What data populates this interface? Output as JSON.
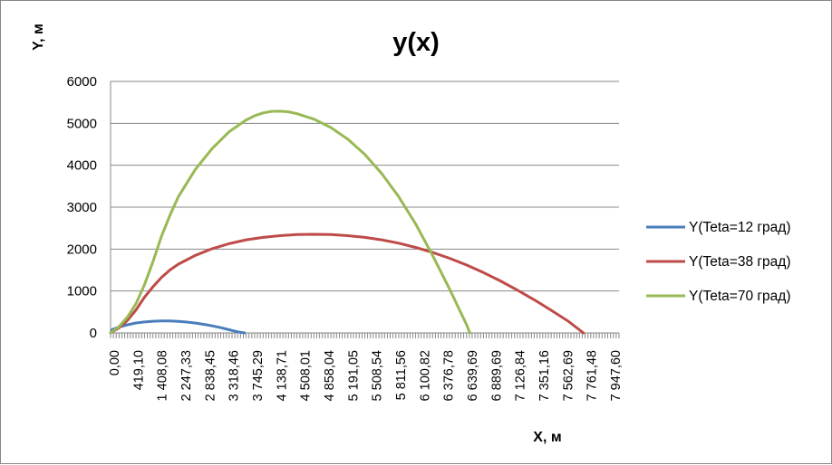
{
  "chart_data": {
    "type": "line",
    "title": "y(x)",
    "xlabel": "X, м",
    "ylabel": "Y, м",
    "ylim": [
      0,
      6000
    ],
    "yticks": [
      "0",
      "1000",
      "2000",
      "3000",
      "4000",
      "5000",
      "6000"
    ],
    "grid": "horizontal",
    "legend_position": "right",
    "x_tick_labels": [
      "0,00",
      "419,10",
      "1 408,08",
      "2 247,33",
      "2 838,45",
      "3 318,46",
      "3 745,29",
      "4 138,71",
      "4 508,01",
      "4 858,04",
      "5 191,05",
      "5 508,54",
      "5 811,56",
      "6 100,82",
      "6 376,78",
      "6 639,69",
      "6 889,69",
      "7 126,84",
      "7 351,16",
      "7 562,69",
      "7 761,48",
      "7 947,60"
    ],
    "series": [
      {
        "name": "Y(Teta=12 град)",
        "color": "#4a7ebb",
        "points": [
          [
            0,
            0
          ],
          [
            0.1,
            80
          ],
          [
            0.5,
            140
          ],
          [
            1,
            195
          ],
          [
            1.5,
            238
          ],
          [
            2,
            262
          ],
          [
            2.5,
            278
          ],
          [
            3,
            285
          ],
          [
            3.5,
            284
          ],
          [
            4,
            275
          ],
          [
            4.5,
            260
          ],
          [
            5,
            235
          ],
          [
            5.5,
            205
          ],
          [
            6,
            168
          ],
          [
            6.5,
            125
          ],
          [
            7,
            75
          ],
          [
            7.5,
            25
          ],
          [
            7.9,
            0
          ]
        ]
      },
      {
        "name": "Y(Teta=38 град)",
        "color": "#be4b48",
        "points": [
          [
            0,
            0
          ],
          [
            0.5,
            120
          ],
          [
            1,
            300
          ],
          [
            1.5,
            550
          ],
          [
            2,
            850
          ],
          [
            2.5,
            1100
          ],
          [
            3,
            1320
          ],
          [
            3.5,
            1500
          ],
          [
            4,
            1640
          ],
          [
            5,
            1850
          ],
          [
            6,
            2010
          ],
          [
            7,
            2130
          ],
          [
            8,
            2220
          ],
          [
            9,
            2280
          ],
          [
            10,
            2320
          ],
          [
            11,
            2345
          ],
          [
            12,
            2352
          ],
          [
            13,
            2345
          ],
          [
            14,
            2320
          ],
          [
            15,
            2280
          ],
          [
            16,
            2220
          ],
          [
            17,
            2140
          ],
          [
            18,
            2040
          ],
          [
            19,
            1920
          ],
          [
            20,
            1780
          ],
          [
            21,
            1620
          ],
          [
            22,
            1440
          ],
          [
            23,
            1240
          ],
          [
            24,
            1020
          ],
          [
            25,
            790
          ],
          [
            26,
            540
          ],
          [
            27,
            280
          ],
          [
            27.9,
            0
          ]
        ]
      },
      {
        "name": "Y(Teta=70 град)",
        "color": "#98b954",
        "points": [
          [
            0,
            0
          ],
          [
            0.5,
            150
          ],
          [
            1,
            380
          ],
          [
            1.5,
            700
          ],
          [
            2,
            1150
          ],
          [
            2.5,
            1700
          ],
          [
            3,
            2300
          ],
          [
            3.5,
            2800
          ],
          [
            4,
            3250
          ],
          [
            5,
            3900
          ],
          [
            6,
            4400
          ],
          [
            7,
            4800
          ],
          [
            8,
            5080
          ],
          [
            8.5,
            5180
          ],
          [
            9,
            5250
          ],
          [
            9.5,
            5285
          ],
          [
            10,
            5290
          ],
          [
            10.5,
            5275
          ],
          [
            11,
            5230
          ],
          [
            12,
            5100
          ],
          [
            13,
            4900
          ],
          [
            14,
            4620
          ],
          [
            15,
            4260
          ],
          [
            16,
            3800
          ],
          [
            17,
            3250
          ],
          [
            18,
            2600
          ],
          [
            19,
            1850
          ],
          [
            20,
            1050
          ],
          [
            21,
            200
          ],
          [
            21.2,
            0
          ]
        ]
      }
    ]
  }
}
